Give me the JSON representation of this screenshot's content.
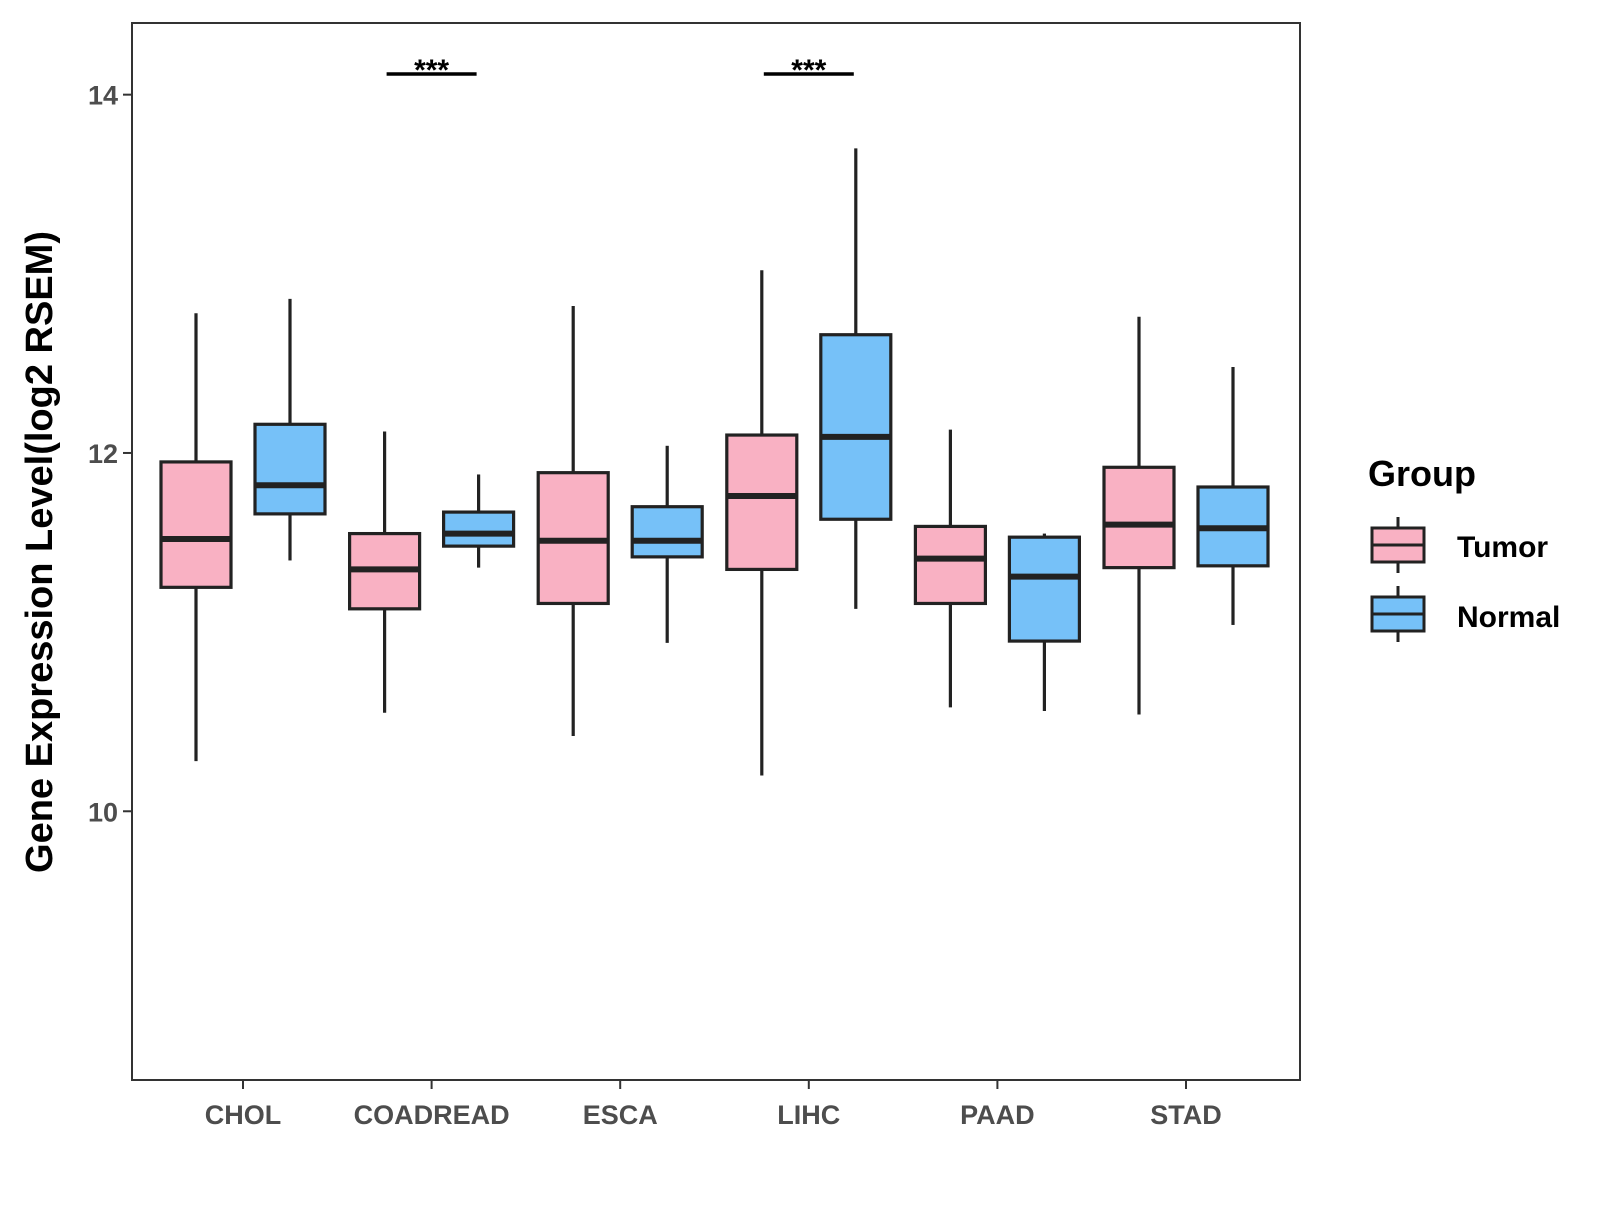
{
  "chart_data": {
    "type": "boxplot",
    "title": "",
    "xlabel": "",
    "ylabel": "Gene Expression Level(log2 RSEM)",
    "ylim": [
      8.5,
      14.4
    ],
    "yticks": [
      10,
      12,
      14
    ],
    "ytick_labels": [
      "10",
      "12",
      "14"
    ],
    "grid": false,
    "categories": [
      "CHOL",
      "COADREAD",
      "ESCA",
      "LIHC",
      "PAAD",
      "STAD"
    ],
    "legend": {
      "title": "Group",
      "position": "right",
      "entries": [
        "Tumor",
        "Normal"
      ]
    },
    "colors": {
      "Tumor": "#f9b1c3",
      "Normal": "#76c1f8",
      "stroke": "#222222"
    },
    "series": [
      {
        "name": "Tumor",
        "boxes": [
          {
            "category": "CHOL",
            "min": 10.28,
            "q1": 11.25,
            "median": 11.52,
            "q3": 11.95,
            "max": 12.78
          },
          {
            "category": "COADREAD",
            "min": 10.55,
            "q1": 11.13,
            "median": 11.35,
            "q3": 11.55,
            "max": 12.12
          },
          {
            "category": "ESCA",
            "min": 10.42,
            "q1": 11.16,
            "median": 11.51,
            "q3": 11.89,
            "max": 12.82
          },
          {
            "category": "LIHC",
            "min": 10.2,
            "q1": 11.35,
            "median": 11.76,
            "q3": 12.1,
            "max": 13.02
          },
          {
            "category": "PAAD",
            "min": 10.58,
            "q1": 11.16,
            "median": 11.41,
            "q3": 11.59,
            "max": 12.13
          },
          {
            "category": "STAD",
            "min": 10.54,
            "q1": 11.36,
            "median": 11.6,
            "q3": 11.92,
            "max": 12.76
          }
        ]
      },
      {
        "name": "Normal",
        "boxes": [
          {
            "category": "CHOL",
            "min": 11.4,
            "q1": 11.66,
            "median": 11.82,
            "q3": 12.16,
            "max": 12.86
          },
          {
            "category": "COADREAD",
            "min": 11.36,
            "q1": 11.48,
            "median": 11.55,
            "q3": 11.67,
            "max": 11.88
          },
          {
            "category": "ESCA",
            "min": 10.94,
            "q1": 11.42,
            "median": 11.51,
            "q3": 11.7,
            "max": 12.04
          },
          {
            "category": "LIHC",
            "min": 11.13,
            "q1": 11.63,
            "median": 12.09,
            "q3": 12.66,
            "max": 13.7
          },
          {
            "category": "PAAD",
            "min": 10.56,
            "q1": 10.95,
            "median": 11.31,
            "q3": 11.53,
            "max": 11.55
          },
          {
            "category": "STAD",
            "min": 11.04,
            "q1": 11.37,
            "median": 11.58,
            "q3": 11.81,
            "max": 12.48
          }
        ]
      }
    ],
    "annotations": [
      {
        "category": "COADREAD",
        "label": "***"
      },
      {
        "category": "LIHC",
        "label": "***"
      }
    ]
  }
}
